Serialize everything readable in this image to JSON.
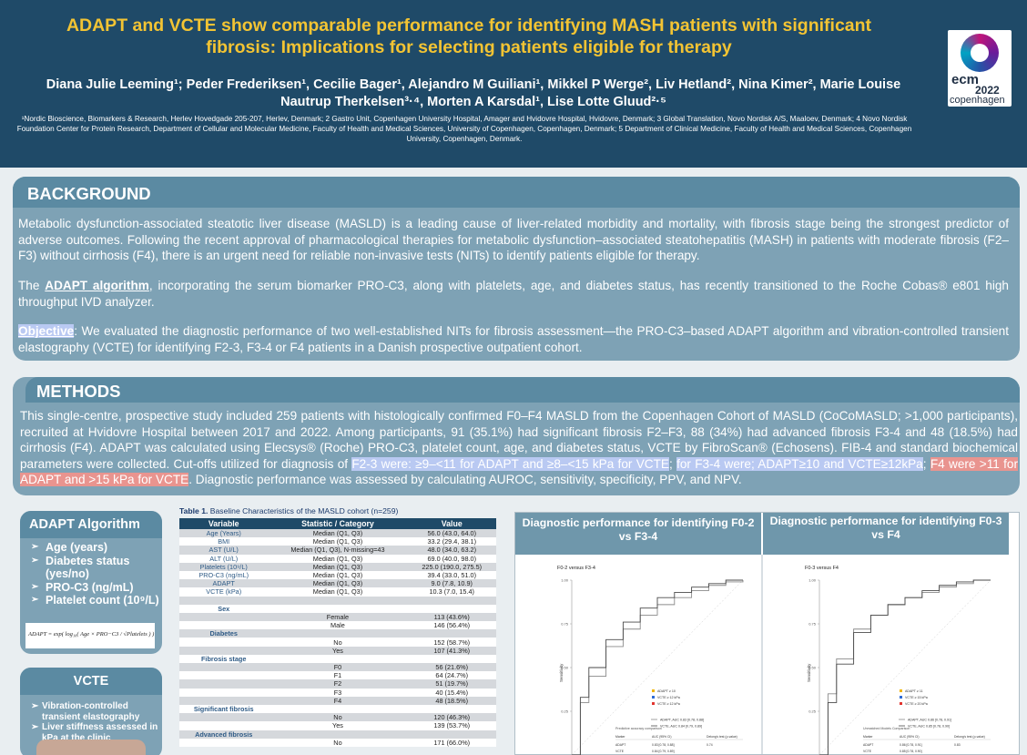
{
  "header": {
    "title_line1": "ADAPT and VCTE show comparable performance for identifying MASH patients with significant",
    "title_line2": "fibrosis: Implications for selecting patients eligible for therapy",
    "authors_line1": "Diana Julie Leeming¹; Peder Frederiksen¹, Cecilie Bager¹, Alejandro M Guiliani¹, Mikkel P Werge², Liv Hetland², Nina Kimer², Marie Louise",
    "authors_line2": "Nautrup Therkelsen³·⁴, Morten A Karsdal¹, Lise Lotte Gluud²·⁵",
    "affiliations": "¹Nordic Bioscience, Biomarkers & Research, Herlev Hovedgade 205-207, Herlev, Denmark; 2 Gastro Unit, Copenhagen University Hospital, Amager and Hvidovre Hospital, Hvidovre, Denmark; 3 Global Translation, Novo Nordisk A/S, Maaloev, Denmark; 4 Novo Nordisk Foundation Center for Protein Research, Department of Cellular and Molecular Medicine, Faculty of Health and Medical Sciences, University of Copenhagen, Copenhagen, Denmark; 5 Department of Clinical Medicine, Faculty of Health and Medical Sciences, Copenhagen University, Copenhagen, Denmark.",
    "logo_line1": "ecm",
    "logo_line2": "2022",
    "logo_line3": "copenhagen"
  },
  "background": {
    "title": "BACKGROUND",
    "p1": "Metabolic dysfunction-associated steatotic liver disease (MASLD) is a leading cause of liver-related morbidity and mortality, with fibrosis stage being the strongest predictor of adverse outcomes. Following the recent approval of pharmacological therapies for metabolic dysfunction–associated steatohepatitis (MASH) in patients with moderate fibrosis (F2–F3) without cirrhosis (F4), there is an urgent need for reliable non-invasive tests (NITs) to identify patients eligible for therapy.",
    "p2_pre": "The ",
    "p2_link": "ADAPT algorithm",
    "p2_post": ", incorporating the serum biomarker PRO-C3, along with platelets, age, and diabetes status, has recently transitioned to the Roche Cobas® e801 high throughput IVD analyzer.",
    "p3_label": "Objective",
    "p3_text": ": We evaluated the diagnostic performance of two well-established NITs for fibrosis assessment—the PRO-C3–based ADAPT algorithm and vibration-controlled transient elastography (VCTE) for identifying F2-3, F3-4 or F4 patients in a Danish prospective outpatient cohort."
  },
  "methods": {
    "title": "METHODS",
    "t1": "This single-centre, prospective study included 259 patients with histologically confirmed F0–F4 MASLD from the Copenhagen Cohort of MASLD (CoCoMASLD; >1,000 participants), recruited at Hvidovre Hospital between 2017 and 2022. Among participants, 91 (35.1%) had significant fibrosis F2–F3, 88 (34%) had advanced fibrosis F3-4 and 48 (18.5%) had cirrhosis (F4). ADAPT was calculated using Elecsys® (Roche) PRO-C3, platelet count, age, and diabetes status, VCTE by FibroScan® (Echosens). FIB-4 and standard biochemical parameters were collected. Cut-offs utilized for diagnosis of ",
    "h1": "F2-3 were: ≥9–<11 for ADAPT and ≥8–<15 kPa for VCTE",
    "t2": "; ",
    "h2": "for F3-4 were; ADAPT≥10 and VCTE≥12kPa",
    "t3": "; ",
    "h3": " F4 were >11 for ADAPT and >15 kPa for VCTE",
    "t4": ". Diagnostic performance was assessed by calculating AUROC, sensitivity, specificity, PPV, and NPV."
  },
  "adapt_box": {
    "title": "ADAPT Algorithm",
    "items": [
      "Age (years)",
      "Diabetes status (yes/no)",
      "PRO-C3 (ng/mL)",
      "Platelet count (10⁹/L)"
    ],
    "formula": "ADAPT = exp( log₁₀( Age × PRO−C3 / √Platelets ) ) + Diabetes"
  },
  "vcte_box": {
    "title": "VCTE",
    "items": [
      "Vibration-controlled transient elastography",
      "Liver stiffness assessed in kPa at the clinic"
    ]
  },
  "table": {
    "caption_bold": "Table 1.",
    "caption": " Baseline Characteristics of the MASLD cohort (n=259)",
    "headers": [
      "Variable",
      "Statistic / Category",
      "Value"
    ],
    "rows": [
      [
        "Age (Years)",
        "Median (Q1, Q3)",
        "56.0 (43.0, 64.0)"
      ],
      [
        "BMI",
        "Median (Q1, Q3)",
        "33.2 (29.4, 38.1)"
      ],
      [
        "AST (U/L)",
        "Median (Q1, Q3), N-missing=43",
        "48.0 (34.0, 63.2)"
      ],
      [
        "ALT (U/L)",
        "Median (Q1, Q3)",
        "69.0 (40.0, 98.0)"
      ],
      [
        "Platelets (10⁹/L)",
        "Median (Q1, Q3)",
        "225.0 (190.0, 275.5)"
      ],
      [
        "PRO-C3 (ng/mL)",
        "Median (Q1, Q3)",
        "39.4 (33.0, 51.0)"
      ],
      [
        "ADAPT",
        "Median (Q1, Q3)",
        "9.0 (7.8, 10.9)"
      ],
      [
        "VCTE (kPa)",
        "Median (Q1, Q3)",
        "10.3 (7.0, 15.4)"
      ],
      [
        "",
        "",
        ""
      ],
      [
        "Sex",
        "",
        ""
      ],
      [
        "",
        "Female",
        "113 (43.6%)"
      ],
      [
        "",
        "Male",
        "146 (56.4%)"
      ],
      [
        "Diabetes",
        "",
        ""
      ],
      [
        "",
        "No",
        "152 (58.7%)"
      ],
      [
        "",
        "Yes",
        "107 (41.3%)"
      ],
      [
        "Fibrosis stage",
        "",
        ""
      ],
      [
        "",
        "F0",
        "56 (21.6%)"
      ],
      [
        "",
        "F1",
        "64 (24.7%)"
      ],
      [
        "",
        "F2",
        "51 (19.7%)"
      ],
      [
        "",
        "F3",
        "40 (15.4%)"
      ],
      [
        "",
        "F4",
        "48 (18.5%)"
      ],
      [
        "Significant fibrosis",
        "",
        ""
      ],
      [
        "",
        "No",
        "120 (46.3%)"
      ],
      [
        "",
        "Yes",
        "139 (53.7%)"
      ],
      [
        "Advanced fibrosis",
        "",
        ""
      ],
      [
        "",
        "No",
        "171 (66.0%)"
      ]
    ]
  },
  "roc": {
    "left_title": "Diagnostic performance for identifying F0-2 vs F3-4",
    "right_title": "Diagnostic performance for identifying F0-3 vs F4",
    "left_plot_label": "F0-2 versus F3-4",
    "right_plot_label": "F0-3 versus F4",
    "ylabel": "Sensitivity",
    "ticks": [
      "1.00",
      "0.75",
      "0.50",
      "0.25"
    ],
    "left_legend": [
      "ADAPT ≥ 10",
      "VCTE ≥ 12 kPa",
      "VCTE ≥ 12 kPa"
    ],
    "right_legend": [
      "ADAPT ≥ 11",
      "VCTE ≥ 15 kPa",
      "VCTE ≥ 20 kPa"
    ],
    "left_curve_legend": [
      "ADAPT, AUC 0.83 [0.78, 0.88]",
      "VCTE, AUC 0.84 [0.79, 0.89]"
    ],
    "right_curve_legend": [
      "ADAPT, AUC 0.86 [0.78, 0.91]",
      "VCTE, AUC 0.85 [0.78, 0.90]"
    ],
    "left_table_title": "Predictive accuracy comparison",
    "right_table_title": "Unmatched Models Comparison",
    "table_headers": [
      "Marker",
      "AUC (95% CI)",
      "Delong's test (p-value)"
    ],
    "left_rows": [
      [
        "ADAPT",
        "0.83 [0.78, 0.88]",
        "0.74"
      ],
      [
        "VCTE",
        "0.84 [0.79, 0.89]",
        ""
      ]
    ],
    "right_rows": [
      [
        "ADAPT",
        "0.86 [0.78, 0.91]",
        "0.83"
      ],
      [
        "VCTE",
        "0.85 [0.78, 0.90]",
        ""
      ]
    ],
    "colors": {
      "adapt": "#8a8a8a",
      "vcte": "#4a4a4a",
      "adapt_pt": "#f0b400",
      "vcte_pt1": "#2e6bd6",
      "vcte_pt2": "#e2342f"
    }
  },
  "chart_data": [
    {
      "type": "line",
      "series": [
        {
          "name": "ADAPT, AUC 0.83 [0.78, 0.88]",
          "x": [
            0,
            0.05,
            0.1,
            0.2,
            0.3,
            0.4,
            0.5,
            0.6,
            0.7,
            0.8,
            0.9,
            1.0
          ],
          "values": [
            0,
            0.3,
            0.45,
            0.62,
            0.72,
            0.8,
            0.86,
            0.9,
            0.94,
            0.97,
            0.99,
            1.0
          ]
        },
        {
          "name": "VCTE, AUC 0.84 [0.79, 0.89]",
          "x": [
            0,
            0.05,
            0.1,
            0.2,
            0.3,
            0.4,
            0.5,
            0.6,
            0.7,
            0.8,
            0.9,
            1.0
          ],
          "values": [
            0,
            0.33,
            0.5,
            0.66,
            0.76,
            0.84,
            0.9,
            0.93,
            0.96,
            0.98,
            1.0,
            1.0
          ]
        }
      ],
      "xlim": [
        0,
        1
      ],
      "ylim": [
        0,
        1
      ],
      "ylabel": "Sensitivity"
    },
    {
      "type": "line",
      "series": [
        {
          "name": "ADAPT, AUC 0.86 [0.78, 0.91]",
          "x": [
            0,
            0.05,
            0.1,
            0.2,
            0.3,
            0.4,
            0.5,
            0.6,
            0.7,
            0.8,
            0.9,
            1.0
          ],
          "values": [
            0,
            0.35,
            0.55,
            0.72,
            0.8,
            0.86,
            0.9,
            0.93,
            0.96,
            0.98,
            1.0,
            1.0
          ]
        },
        {
          "name": "VCTE, AUC 0.85 [0.78, 0.90]",
          "x": [
            0,
            0.05,
            0.1,
            0.2,
            0.3,
            0.4,
            0.5,
            0.6,
            0.7,
            0.8,
            0.9,
            1.0
          ],
          "values": [
            0,
            0.3,
            0.52,
            0.7,
            0.8,
            0.86,
            0.9,
            0.94,
            0.97,
            0.99,
            1.0,
            1.0
          ]
        }
      ],
      "xlim": [
        0,
        1
      ],
      "ylim": [
        0,
        1
      ],
      "ylabel": "Sensitivity"
    }
  ]
}
